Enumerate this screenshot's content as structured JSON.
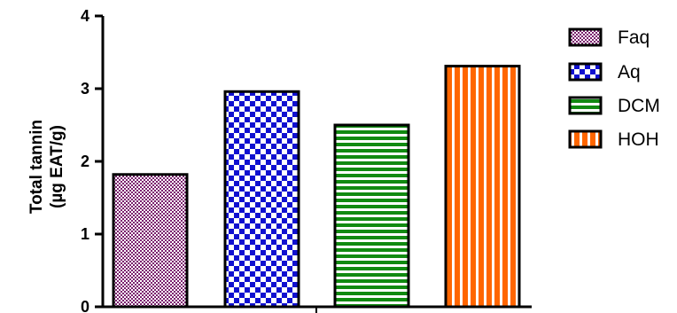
{
  "chart_data": {
    "type": "bar",
    "categories": [
      "Faq",
      "Aq",
      "DCM",
      "HOH"
    ],
    "values": [
      1.82,
      2.96,
      2.5,
      3.31
    ],
    "ylabel": [
      "Total tannin",
      "(µg EAT/g)"
    ],
    "xlabel": "",
    "ylim": [
      0,
      4
    ],
    "yticks": [
      "0",
      "1",
      "2",
      "3",
      "4"
    ],
    "grid": false,
    "legend": {
      "position": "right",
      "entries": [
        "Faq",
        "Aq",
        "DCM",
        "HOH"
      ]
    },
    "series_styles": [
      {
        "pattern": "fine-checker",
        "color": "#7a1f6e"
      },
      {
        "pattern": "checker",
        "color": "#1010d0"
      },
      {
        "pattern": "horizontal-stripes",
        "color": "#118a11"
      },
      {
        "pattern": "vertical-stripes",
        "color": "#ff6600"
      }
    ]
  }
}
